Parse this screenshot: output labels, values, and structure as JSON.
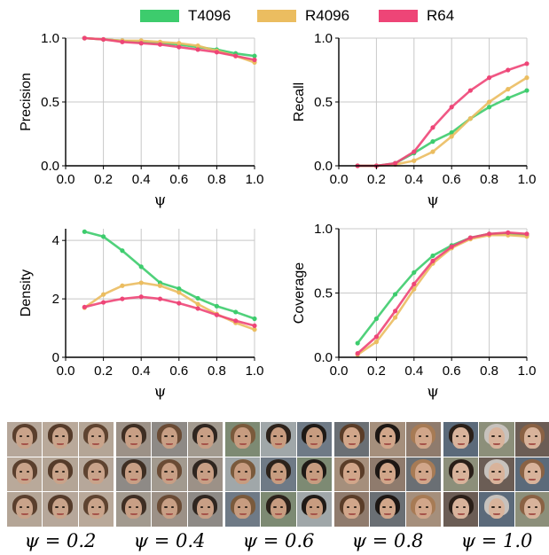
{
  "legend": [
    {
      "name": "T4096",
      "color": "#3dcc6d"
    },
    {
      "name": "R4096",
      "color": "#ebbd60"
    },
    {
      "name": "R64",
      "color": "#ee4577"
    }
  ],
  "chart_data": [
    {
      "type": "line",
      "ylabel": "Precision",
      "xlabel": "ψ",
      "x": [
        0.1,
        0.2,
        0.3,
        0.4,
        0.5,
        0.6,
        0.7,
        0.8,
        0.9,
        1.0
      ],
      "xlim": [
        0.0,
        1.0
      ],
      "ylim": [
        0.0,
        1.0
      ],
      "xticks": [
        "0.0",
        "0.2",
        "0.4",
        "0.6",
        "0.8",
        "1.0"
      ],
      "yticks": [
        "0.0",
        "0.5",
        "1.0"
      ],
      "grid": true,
      "series": [
        {
          "name": "T4096",
          "values": [
            1.0,
            0.99,
            0.98,
            0.97,
            0.96,
            0.95,
            0.93,
            0.91,
            0.88,
            0.86
          ]
        },
        {
          "name": "R4096",
          "values": [
            1.0,
            0.99,
            0.98,
            0.98,
            0.97,
            0.96,
            0.94,
            0.9,
            0.86,
            0.81
          ]
        },
        {
          "name": "R64",
          "values": [
            1.0,
            0.99,
            0.97,
            0.96,
            0.95,
            0.93,
            0.91,
            0.89,
            0.86,
            0.83
          ]
        }
      ]
    },
    {
      "type": "line",
      "ylabel": "Recall",
      "xlabel": "ψ",
      "x": [
        0.1,
        0.2,
        0.3,
        0.4,
        0.5,
        0.6,
        0.7,
        0.8,
        0.9,
        1.0
      ],
      "xlim": [
        0.0,
        1.0
      ],
      "ylim": [
        0.0,
        1.0
      ],
      "xticks": [
        "0.0",
        "0.2",
        "0.4",
        "0.6",
        "0.8",
        "1.0"
      ],
      "yticks": [
        "0.0",
        "0.5",
        "1.0"
      ],
      "grid": true,
      "series": [
        {
          "name": "T4096",
          "values": [
            0.0,
            0.0,
            0.02,
            0.1,
            0.19,
            0.26,
            0.37,
            0.46,
            0.53,
            0.59
          ]
        },
        {
          "name": "R4096",
          "values": [
            0.0,
            0.0,
            0.01,
            0.04,
            0.11,
            0.23,
            0.37,
            0.5,
            0.6,
            0.69
          ]
        },
        {
          "name": "R64",
          "values": [
            0.0,
            0.0,
            0.02,
            0.11,
            0.3,
            0.46,
            0.59,
            0.69,
            0.75,
            0.8
          ]
        }
      ]
    },
    {
      "type": "line",
      "ylabel": "Density",
      "xlabel": "ψ",
      "x": [
        0.1,
        0.2,
        0.3,
        0.4,
        0.5,
        0.6,
        0.7,
        0.8,
        0.9,
        1.0
      ],
      "xlim": [
        0.0,
        1.0
      ],
      "ylim": [
        0.0,
        4.4
      ],
      "xticks": [
        "0.0",
        "0.2",
        "0.4",
        "0.6",
        "0.8",
        "1.0"
      ],
      "yticks": [
        "0",
        "2",
        "4"
      ],
      "grid": true,
      "series": [
        {
          "name": "T4096",
          "values": [
            4.3,
            4.13,
            3.65,
            3.1,
            2.55,
            2.35,
            2.02,
            1.75,
            1.55,
            1.32
          ]
        },
        {
          "name": "R4096",
          "values": [
            1.7,
            2.15,
            2.45,
            2.55,
            2.45,
            2.22,
            1.82,
            1.48,
            1.18,
            0.95
          ]
        },
        {
          "name": "R64",
          "values": [
            1.72,
            1.88,
            2.0,
            2.07,
            2.0,
            1.85,
            1.67,
            1.45,
            1.25,
            1.08
          ]
        }
      ]
    },
    {
      "type": "line",
      "ylabel": "Coverage",
      "xlabel": "ψ",
      "x": [
        0.1,
        0.2,
        0.3,
        0.4,
        0.5,
        0.6,
        0.7,
        0.8,
        0.9,
        1.0
      ],
      "xlim": [
        0.0,
        1.0
      ],
      "ylim": [
        0.0,
        1.0
      ],
      "xticks": [
        "0.0",
        "0.2",
        "0.4",
        "0.6",
        "0.8",
        "1.0"
      ],
      "yticks": [
        "0.0",
        "0.5",
        "1.0"
      ],
      "grid": true,
      "series": [
        {
          "name": "T4096",
          "values": [
            0.11,
            0.3,
            0.49,
            0.66,
            0.79,
            0.87,
            0.93,
            0.96,
            0.96,
            0.95
          ]
        },
        {
          "name": "R4096",
          "values": [
            0.02,
            0.12,
            0.31,
            0.53,
            0.73,
            0.85,
            0.92,
            0.95,
            0.95,
            0.94
          ]
        },
        {
          "name": "R64",
          "values": [
            0.03,
            0.16,
            0.36,
            0.57,
            0.75,
            0.86,
            0.93,
            0.96,
            0.97,
            0.96
          ]
        }
      ]
    }
  ],
  "face_groups": [
    {
      "label": "ψ = 0.2"
    },
    {
      "label": "ψ = 0.4"
    },
    {
      "label": "ψ = 0.6"
    },
    {
      "label": "ψ = 0.8"
    },
    {
      "label": "ψ = 1.0"
    }
  ]
}
